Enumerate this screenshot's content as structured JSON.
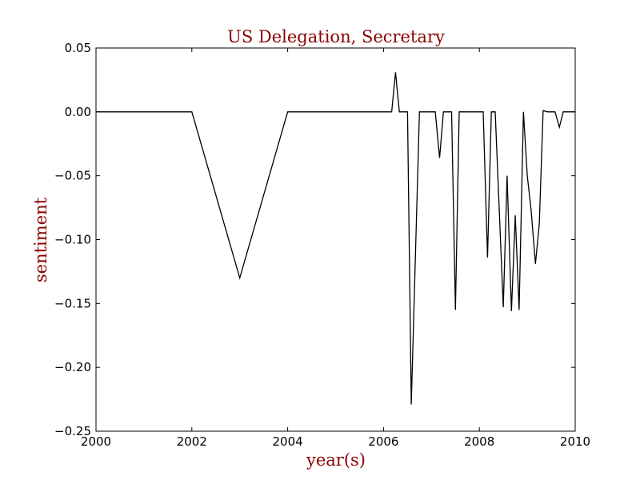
{
  "chart_data": {
    "type": "line",
    "title": "US Delegation, Secretary",
    "xlabel": "year(s)",
    "ylabel": "sentiment",
    "xlim": [
      2000,
      2010
    ],
    "ylim": [
      -0.25,
      0.05
    ],
    "x_ticks": [
      2000,
      2002,
      2004,
      2006,
      2008,
      2010
    ],
    "x_tick_labels": [
      "2000",
      "2002",
      "2004",
      "2006",
      "2008",
      "2010"
    ],
    "y_ticks": [
      0.05,
      0.0,
      -0.05,
      -0.1,
      -0.15,
      -0.2,
      -0.25
    ],
    "y_tick_labels": [
      "0.05",
      "0.00",
      "−0.05",
      "−0.10",
      "−0.15",
      "−0.20",
      "−0.25"
    ],
    "grid": false,
    "line_color": "#000000",
    "title_color": "#8b0000",
    "series": [
      {
        "x": [
          2000.0,
          2002.0,
          2003.0,
          2004.0,
          2006.17,
          2006.25,
          2006.33,
          2006.5,
          2006.58,
          2006.75,
          2007.08,
          2007.17,
          2007.25,
          2007.42,
          2007.5,
          2007.58,
          2008.08,
          2008.17,
          2008.25,
          2008.33,
          2008.5,
          2008.58,
          2008.67,
          2008.75,
          2008.83,
          2008.92,
          2009.0,
          2009.08,
          2009.17,
          2009.25,
          2009.33,
          2009.42,
          2009.58,
          2009.67,
          2009.75,
          2010.0
        ],
        "y": [
          0.0,
          0.0,
          -0.13,
          0.0,
          0.0,
          0.031,
          0.0,
          0.0,
          -0.229,
          0.0,
          0.0,
          -0.036,
          0.0,
          0.0,
          -0.155,
          0.0,
          0.0,
          -0.114,
          0.0,
          0.0,
          -0.153,
          -0.05,
          -0.156,
          -0.081,
          -0.155,
          0.0,
          -0.05,
          -0.077,
          -0.119,
          -0.088,
          0.001,
          0.0,
          0.0,
          -0.012,
          0.0,
          0.0
        ]
      }
    ]
  }
}
